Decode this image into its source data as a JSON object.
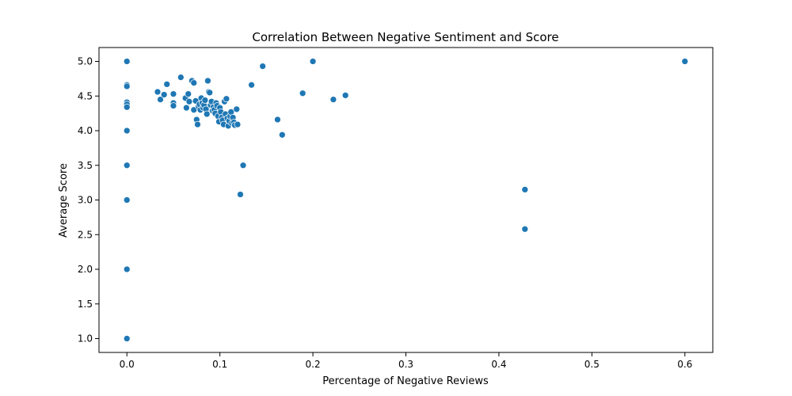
{
  "chart_data": {
    "type": "scatter",
    "title": "Correlation Between Negative Sentiment and Score",
    "xlabel": "Percentage of Negative Reviews",
    "ylabel": "Average Score",
    "xlim": [
      -0.03,
      0.63
    ],
    "ylim": [
      0.8,
      5.2
    ],
    "xticks": [
      0.0,
      0.1,
      0.2,
      0.3,
      0.4,
      0.5,
      0.6
    ],
    "xtick_labels": [
      "0.0",
      "0.1",
      "0.2",
      "0.3",
      "0.4",
      "0.5",
      "0.6"
    ],
    "yticks": [
      1.0,
      1.5,
      2.0,
      2.5,
      3.0,
      3.5,
      4.0,
      4.5,
      5.0
    ],
    "ytick_labels": [
      "1.0",
      "1.5",
      "2.0",
      "2.5",
      "3.0",
      "3.5",
      "4.0",
      "4.5",
      "5.0"
    ],
    "grid": false,
    "marker_color": "#1f77b4",
    "series": [
      {
        "points": [
          [
            0.0,
            5.0
          ],
          [
            0.0,
            4.66
          ],
          [
            0.0,
            4.64
          ],
          [
            0.0,
            4.41
          ],
          [
            0.0,
            4.38
          ],
          [
            0.0,
            4.34
          ],
          [
            0.0,
            4.0
          ],
          [
            0.0,
            3.5
          ],
          [
            0.0,
            3.0
          ],
          [
            0.0,
            2.0
          ],
          [
            0.0,
            1.0
          ],
          [
            0.033,
            4.56
          ],
          [
            0.036,
            4.45
          ],
          [
            0.04,
            4.52
          ],
          [
            0.043,
            4.67
          ],
          [
            0.05,
            4.53
          ],
          [
            0.05,
            4.4
          ],
          [
            0.05,
            4.36
          ],
          [
            0.058,
            4.77
          ],
          [
            0.063,
            4.47
          ],
          [
            0.064,
            4.33
          ],
          [
            0.066,
            4.53
          ],
          [
            0.067,
            4.42
          ],
          [
            0.07,
            4.72
          ],
          [
            0.072,
            4.69
          ],
          [
            0.072,
            4.3
          ],
          [
            0.074,
            4.43
          ],
          [
            0.075,
            4.16
          ],
          [
            0.076,
            4.09
          ],
          [
            0.077,
            4.35
          ],
          [
            0.078,
            4.38
          ],
          [
            0.079,
            4.3
          ],
          [
            0.08,
            4.47
          ],
          [
            0.081,
            4.4
          ],
          [
            0.082,
            4.33
          ],
          [
            0.083,
            4.37
          ],
          [
            0.084,
            4.44
          ],
          [
            0.085,
            4.31
          ],
          [
            0.086,
            4.24
          ],
          [
            0.087,
            4.72
          ],
          [
            0.088,
            4.56
          ],
          [
            0.089,
            4.55
          ],
          [
            0.09,
            4.37
          ],
          [
            0.091,
            4.42
          ],
          [
            0.092,
            4.29
          ],
          [
            0.093,
            4.34
          ],
          [
            0.094,
            4.3
          ],
          [
            0.095,
            4.25
          ],
          [
            0.096,
            4.4
          ],
          [
            0.097,
            4.36
          ],
          [
            0.098,
            4.21
          ],
          [
            0.099,
            4.13
          ],
          [
            0.1,
            4.33
          ],
          [
            0.101,
            4.27
          ],
          [
            0.102,
            4.19
          ],
          [
            0.103,
            4.15
          ],
          [
            0.104,
            4.09
          ],
          [
            0.105,
            4.42
          ],
          [
            0.106,
            4.24
          ],
          [
            0.107,
            4.46
          ],
          [
            0.108,
            4.18
          ],
          [
            0.109,
            4.07
          ],
          [
            0.11,
            4.14
          ],
          [
            0.111,
            4.21
          ],
          [
            0.112,
            4.27
          ],
          [
            0.113,
            4.11
          ],
          [
            0.114,
            4.19
          ],
          [
            0.115,
            4.12
          ],
          [
            0.116,
            4.08
          ],
          [
            0.118,
            4.31
          ],
          [
            0.119,
            4.09
          ],
          [
            0.122,
            3.08
          ],
          [
            0.125,
            3.5
          ],
          [
            0.134,
            4.66
          ],
          [
            0.146,
            4.93
          ],
          [
            0.162,
            4.16
          ],
          [
            0.167,
            3.94
          ],
          [
            0.189,
            4.54
          ],
          [
            0.2,
            5.0
          ],
          [
            0.222,
            4.45
          ],
          [
            0.235,
            4.51
          ],
          [
            0.428,
            3.15
          ],
          [
            0.428,
            2.58
          ],
          [
            0.6,
            5.0
          ]
        ]
      }
    ]
  }
}
